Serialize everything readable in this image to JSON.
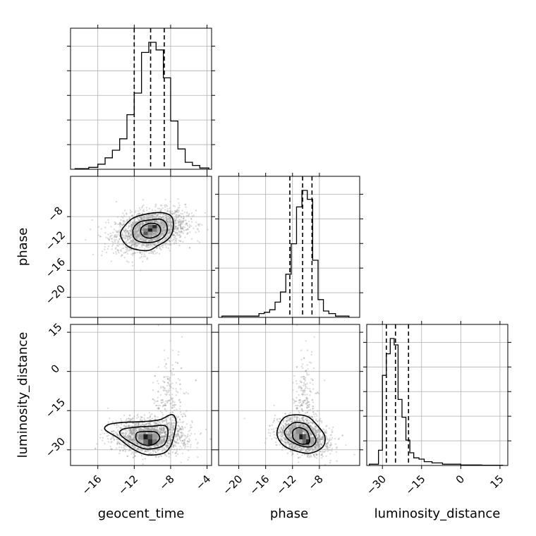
{
  "chart_data": {
    "type": "corner",
    "parameters": [
      "geocent_time",
      "phase",
      "luminosity_distance"
    ],
    "axis_labels": [
      "geocent_time",
      "phase",
      "luminosity_distance"
    ],
    "ranges": {
      "geocent_time": [
        -19,
        -3.5
      ],
      "phase": [
        -23,
        -2
      ],
      "luminosity_distance": [
        -36,
        18
      ]
    },
    "ticks": {
      "geocent_time": [
        -16,
        -12,
        -8,
        -4
      ],
      "phase": [
        -20,
        -16,
        -12,
        -8
      ],
      "phase_y": [
        -8,
        -12,
        -16,
        -20
      ],
      "luminosity_distance_y": [
        15,
        0,
        -15,
        -30
      ],
      "luminosity_distance_x": [
        -30,
        -15,
        0,
        15
      ]
    },
    "tick_labels": {
      "geocent_time": [
        "−16",
        "−12",
        "−8",
        "−4"
      ],
      "phase": [
        "−20",
        "−16",
        "−12",
        "−8"
      ],
      "phase_y": [
        "−8",
        "−12",
        "−16",
        "−20"
      ],
      "luminosity_distance_y": [
        "15",
        "0",
        "−15",
        "−30"
      ],
      "luminosity_distance_x": [
        "−30",
        "−15",
        "0",
        "15"
      ]
    },
    "quantiles": {
      "geocent_time": [
        -12.0,
        -10.2,
        -8.7
      ],
      "phase": [
        -12.4,
        -10.5,
        -9.1
      ],
      "luminosity_distance": [
        -28.5,
        -25.0,
        -20.0
      ]
    },
    "histograms": {
      "geocent_time": {
        "edges": [
          -18.5,
          -17.0,
          -16.0,
          -15.2,
          -14.4,
          -13.6,
          -12.8,
          -12.0,
          -11.2,
          -10.4,
          -9.6,
          -8.8,
          -8.0,
          -7.2,
          -6.4,
          -5.6,
          -4.8,
          -3.8
        ],
        "counts": [
          0.005,
          0.015,
          0.04,
          0.09,
          0.15,
          0.24,
          0.43,
          0.6,
          0.92,
          1.0,
          0.94,
          0.72,
          0.38,
          0.16,
          0.055,
          0.03,
          0.01
        ]
      },
      "phase": {
        "edges": [
          -22.5,
          -17.0,
          -16.2,
          -15.4,
          -14.6,
          -13.8,
          -13.0,
          -12.2,
          -11.4,
          -10.6,
          -9.8,
          -9.0,
          -8.2,
          -7.4,
          -6.6,
          -5.6,
          -3.6
        ],
        "counts": [
          0.01,
          0.03,
          0.04,
          0.06,
          0.12,
          0.2,
          0.34,
          0.58,
          0.87,
          1.0,
          0.93,
          0.45,
          0.14,
          0.05,
          0.03,
          0.01
        ]
      },
      "luminosity_distance": {
        "edges": [
          -35.0,
          -31.5,
          -30.0,
          -28.5,
          -27.0,
          -25.5,
          -24.0,
          -22.5,
          -21.0,
          -19.5,
          -18.0,
          -16.0,
          -14.0,
          -11.0,
          -7.0,
          0.0,
          8.0,
          16.0
        ],
        "counts": [
          0.01,
          0.12,
          0.71,
          0.88,
          1.0,
          0.95,
          0.52,
          0.38,
          0.2,
          0.1,
          0.06,
          0.05,
          0.03,
          0.02,
          0.01,
          0.004,
          0.002
        ]
      }
    },
    "pairs": [
      {
        "x": "geocent_time",
        "y": "phase",
        "center": [
          -10.2,
          -10.0
        ],
        "spread": [
          1.9,
          1.5
        ],
        "rho": 0.3,
        "contours": [
          [
            [
              -13.0,
              -9.3
            ],
            [
              -12.1,
              -8.2
            ],
            [
              -10.6,
              -7.6
            ],
            [
              -9.0,
              -7.4
            ],
            [
              -7.9,
              -8.0
            ],
            [
              -7.7,
              -9.5
            ],
            [
              -8.0,
              -10.9
            ],
            [
              -8.6,
              -11.7
            ],
            [
              -9.4,
              -12.3
            ],
            [
              -10.3,
              -13.0
            ],
            [
              -11.4,
              -13.0
            ],
            [
              -12.6,
              -12.5
            ],
            [
              -13.3,
              -11.5
            ],
            [
              -13.5,
              -10.4
            ]
          ],
          [
            [
              -12.1,
              -9.8
            ],
            [
              -11.4,
              -8.8
            ],
            [
              -10.3,
              -8.5
            ],
            [
              -9.1,
              -8.4
            ],
            [
              -8.5,
              -9.0
            ],
            [
              -8.4,
              -10.2
            ],
            [
              -8.9,
              -11.2
            ],
            [
              -9.9,
              -11.8
            ],
            [
              -11.2,
              -11.8
            ],
            [
              -12.0,
              -11.2
            ]
          ],
          [
            [
              -11.1,
              -9.5
            ],
            [
              -10.3,
              -9.0
            ],
            [
              -9.4,
              -9.2
            ],
            [
              -9.1,
              -10.0
            ],
            [
              -9.4,
              -10.8
            ],
            [
              -10.3,
              -11.2
            ],
            [
              -11.0,
              -10.9
            ],
            [
              -11.3,
              -10.2
            ]
          ]
        ],
        "density_cells": [
          {
            "x": -10.25,
            "y": -10.0,
            "d": 0.95
          },
          {
            "x": -9.75,
            "y": -9.5,
            "d": 0.9
          },
          {
            "x": -10.75,
            "y": -10.5,
            "d": 0.7
          },
          {
            "x": -10.25,
            "y": -9.5,
            "d": 0.6
          },
          {
            "x": -9.75,
            "y": -10.0,
            "d": 0.55
          },
          {
            "x": -10.75,
            "y": -10.0,
            "d": 0.5
          },
          {
            "x": -9.25,
            "y": -9.5,
            "d": 0.35
          },
          {
            "x": -10.25,
            "y": -10.5,
            "d": 0.4
          },
          {
            "x": -11.25,
            "y": -10.5,
            "d": 0.3
          },
          {
            "x": -9.25,
            "y": -10.0,
            "d": 0.3
          }
        ]
      },
      {
        "x": "geocent_time",
        "y": "luminosity_distance",
        "center": [
          -10.4,
          -25.0
        ],
        "spread": [
          1.9,
          3.2
        ],
        "rho": -0.1,
        "contours": [
          [
            [
              -14.8,
              -20.3
            ],
            [
              -13.2,
              -19.5
            ],
            [
              -11.0,
              -19.2
            ],
            [
              -9.2,
              -18.5
            ],
            [
              -7.9,
              -16.5
            ],
            [
              -7.4,
              -19.0
            ],
            [
              -7.6,
              -24.0
            ],
            [
              -8.0,
              -28.5
            ],
            [
              -8.8,
              -31.3
            ],
            [
              -10.6,
              -31.9
            ],
            [
              -12.2,
              -29.6
            ],
            [
              -13.8,
              -25.4
            ],
            [
              -15.2,
              -22.3
            ]
          ],
          [
            [
              -13.3,
              -22.2
            ],
            [
              -11.7,
              -21.3
            ],
            [
              -10.2,
              -21.0
            ],
            [
              -8.6,
              -20.8
            ],
            [
              -8.3,
              -23.8
            ],
            [
              -8.8,
              -28.3
            ],
            [
              -10.6,
              -29.7
            ],
            [
              -12.1,
              -27.8
            ],
            [
              -13.5,
              -24.3
            ]
          ],
          [
            [
              -11.7,
              -23.5
            ],
            [
              -10.6,
              -23.0
            ],
            [
              -9.6,
              -23.3
            ],
            [
              -9.2,
              -25.5
            ],
            [
              -9.8,
              -27.8
            ],
            [
              -10.8,
              -28.2
            ],
            [
              -11.7,
              -26.5
            ]
          ]
        ],
        "density_cells": [
          {
            "x": -10.75,
            "y": -25.0,
            "d": 0.95
          },
          {
            "x": -10.25,
            "y": -27.0,
            "d": 0.9
          },
          {
            "x": -10.25,
            "y": -25.0,
            "d": 0.7
          },
          {
            "x": -10.75,
            "y": -27.0,
            "d": 0.6
          },
          {
            "x": -9.75,
            "y": -27.0,
            "d": 0.55
          },
          {
            "x": -11.25,
            "y": -25.0,
            "d": 0.45
          },
          {
            "x": -9.75,
            "y": -25.0,
            "d": 0.4
          },
          {
            "x": -11.25,
            "y": -23.0,
            "d": 0.3
          },
          {
            "x": -10.25,
            "y": -23.0,
            "d": 0.35
          },
          {
            "x": -9.25,
            "y": -27.0,
            "d": 0.3
          }
        ]
      },
      {
        "x": "phase",
        "y": "luminosity_distance",
        "center": [
          -10.5,
          -25.0
        ],
        "spread": [
          1.8,
          3.2
        ],
        "rho": -0.3,
        "contours": [
          [
            [
              -13.9,
              -20.0
            ],
            [
              -13.0,
              -17.3
            ],
            [
              -11.2,
              -16.6
            ],
            [
              -9.6,
              -17.5
            ],
            [
              -8.2,
              -21.0
            ],
            [
              -7.2,
              -24.8
            ],
            [
              -7.5,
              -28.9
            ],
            [
              -9.4,
              -31.3
            ],
            [
              -11.6,
              -30.4
            ],
            [
              -13.4,
              -28.2
            ],
            [
              -14.3,
              -24.2
            ]
          ],
          [
            [
              -12.8,
              -21.5
            ],
            [
              -11.7,
              -19.6
            ],
            [
              -10.0,
              -20.2
            ],
            [
              -9.2,
              -22.7
            ],
            [
              -8.5,
              -26.3
            ],
            [
              -9.2,
              -28.7
            ],
            [
              -10.7,
              -28.5
            ],
            [
              -12.5,
              -26.3
            ],
            [
              -13.2,
              -23.5
            ]
          ],
          [
            [
              -11.8,
              -22.3
            ],
            [
              -11.0,
              -21.5
            ],
            [
              -10.0,
              -22.5
            ],
            [
              -9.6,
              -24.3
            ],
            [
              -9.5,
              -27.2
            ],
            [
              -10.7,
              -27.8
            ],
            [
              -11.8,
              -26.0
            ],
            [
              -12.0,
              -23.8
            ]
          ]
        ],
        "density_cells": [
          {
            "x": -10.75,
            "y": -25.0,
            "d": 0.95
          },
          {
            "x": -9.75,
            "y": -27.0,
            "d": 0.9
          },
          {
            "x": -10.25,
            "y": -25.0,
            "d": 0.7
          },
          {
            "x": -10.25,
            "y": -27.0,
            "d": 0.6
          },
          {
            "x": -11.25,
            "y": -23.0,
            "d": 0.45
          },
          {
            "x": -10.75,
            "y": -23.0,
            "d": 0.5
          },
          {
            "x": -11.25,
            "y": -25.0,
            "d": 0.35
          },
          {
            "x": -9.25,
            "y": -27.0,
            "d": 0.35
          },
          {
            "x": -9.75,
            "y": -25.0,
            "d": 0.45
          },
          {
            "x": -11.75,
            "y": -23.0,
            "d": 0.3
          }
        ]
      }
    ],
    "grid": true
  }
}
